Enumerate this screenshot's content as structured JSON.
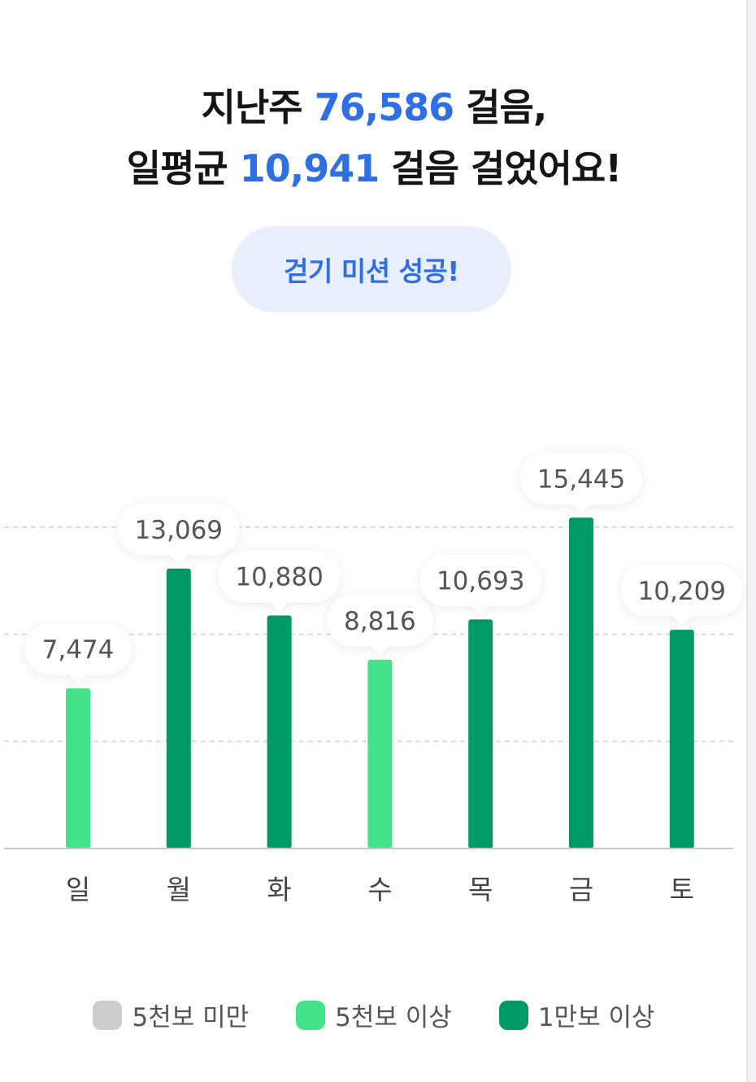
{
  "header": {
    "line1_prefix": "지난주 ",
    "line1_value": "76,586",
    "line1_suffix": " 걸음,",
    "line2_prefix": "일평균 ",
    "line2_value": "10,941",
    "line2_suffix": " 걸음 걸었어요!"
  },
  "mission_badge": "걷기 미션 성공!",
  "chart_data": {
    "type": "bar",
    "categories": [
      "일",
      "월",
      "화",
      "수",
      "목",
      "금",
      "토"
    ],
    "values": [
      7474,
      13069,
      10880,
      8816,
      10693,
      15445,
      10209
    ],
    "value_labels": [
      "7,474",
      "13,069",
      "10,880",
      "8,816",
      "10,693",
      "15,445",
      "10,209"
    ],
    "ylim": [
      0,
      15000
    ],
    "gridlines": [
      5000,
      10000,
      15000
    ],
    "grid": true,
    "legend_position": "bottom",
    "thresholds": {
      "mid": 5000,
      "high": 10000
    },
    "colors": {
      "below_5000": "#cccccc",
      "above_5000": "#44e38a",
      "above_10000": "#009a66",
      "grid": "#dadada",
      "baseline": "#c8c8c8"
    }
  },
  "legend": [
    {
      "label": "5천보 미만",
      "color": "#cccccc"
    },
    {
      "label": "5천보 이상",
      "color": "#44e38a"
    },
    {
      "label": "1만보 이상",
      "color": "#009a66"
    }
  ]
}
